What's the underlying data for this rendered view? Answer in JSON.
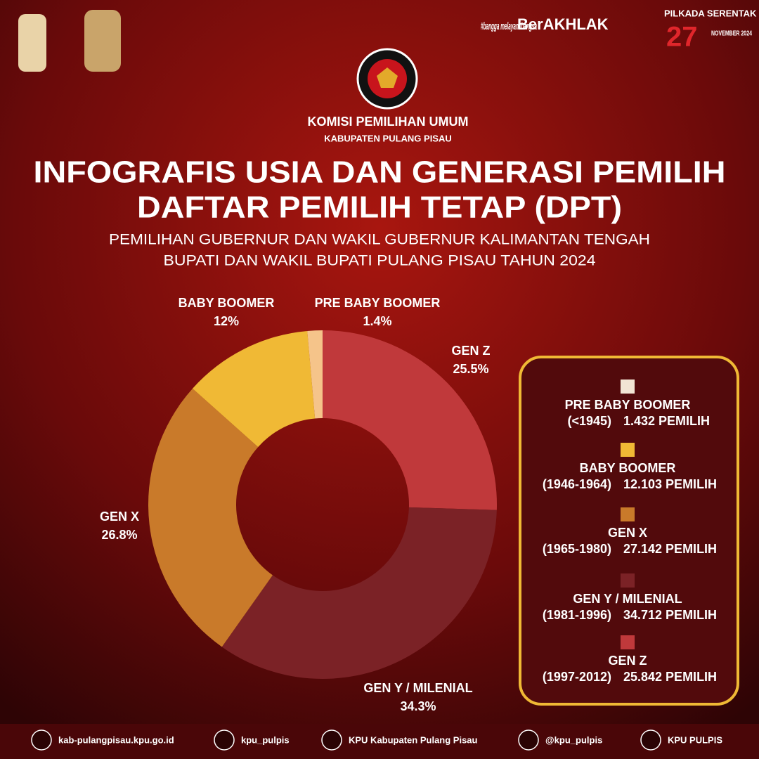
{
  "header": {
    "org": "KOMISI PEMILIHAN UMUM",
    "region": "KABUPATEN PULANG PISAU",
    "title_line1": "INFOGRAFIS USIA DAN GENERASI PEMILIH",
    "title_line2": "DAFTAR PEMILIH TETAP (DPT)",
    "subtitle_line1": "PEMILIHAN GUBERNUR DAN WAKIL GUBERNUR KALIMANTAN TENGAH",
    "subtitle_line2": "BUPATI DAN WAKIL BUPATI PULANG PISAU TAHUN 2024",
    "badges": [
      "#bangga melayani bangsa",
      "BerAKHLAK",
      "PILKADA SERENTAK",
      "27",
      "NOVEMBER 2024"
    ]
  },
  "chart_data": {
    "type": "pie",
    "donut": true,
    "categories": [
      "GEN Z",
      "GEN Y / MILENIAL",
      "GEN X",
      "BABY BOOMER",
      "PRE BABY BOOMER"
    ],
    "values": [
      25.5,
      34.3,
      26.8,
      12,
      1.4
    ],
    "value_labels": [
      "25.5%",
      "34.3%",
      "26.8%",
      "12%",
      "1.4%"
    ],
    "colors": [
      "#c0393b",
      "#7b2226",
      "#c97a2a",
      "#f0b935",
      "#f5c48a"
    ],
    "legend": [
      {
        "name": "PRE BABY BOOMER",
        "range": "(<1945)",
        "count": "1.432 PEMILIH",
        "color": "#f1e4d4"
      },
      {
        "name": "BABY BOOMER",
        "range": "(1946-1964)",
        "count": "12.103 PEMILIH",
        "color": "#f0b935"
      },
      {
        "name": "GEN X",
        "range": "(1965-1980)",
        "count": "27.142 PEMILIH",
        "color": "#c97a2a"
      },
      {
        "name": "GEN Y / MILENIAL",
        "range": "(1981-1996)",
        "count": "34.712 PEMILIH",
        "color": "#7b2226"
      },
      {
        "name": "GEN Z",
        "range": "(1997-2012)",
        "count": "25.842 PEMILIH",
        "color": "#c0393b"
      }
    ]
  },
  "footer": [
    "kab-pulangpisau.kpu.go.id",
    "kpu_pulpis",
    "KPU Kabupaten Pulang Pisau",
    "@kpu_pulpis",
    "KPU PULPIS"
  ]
}
